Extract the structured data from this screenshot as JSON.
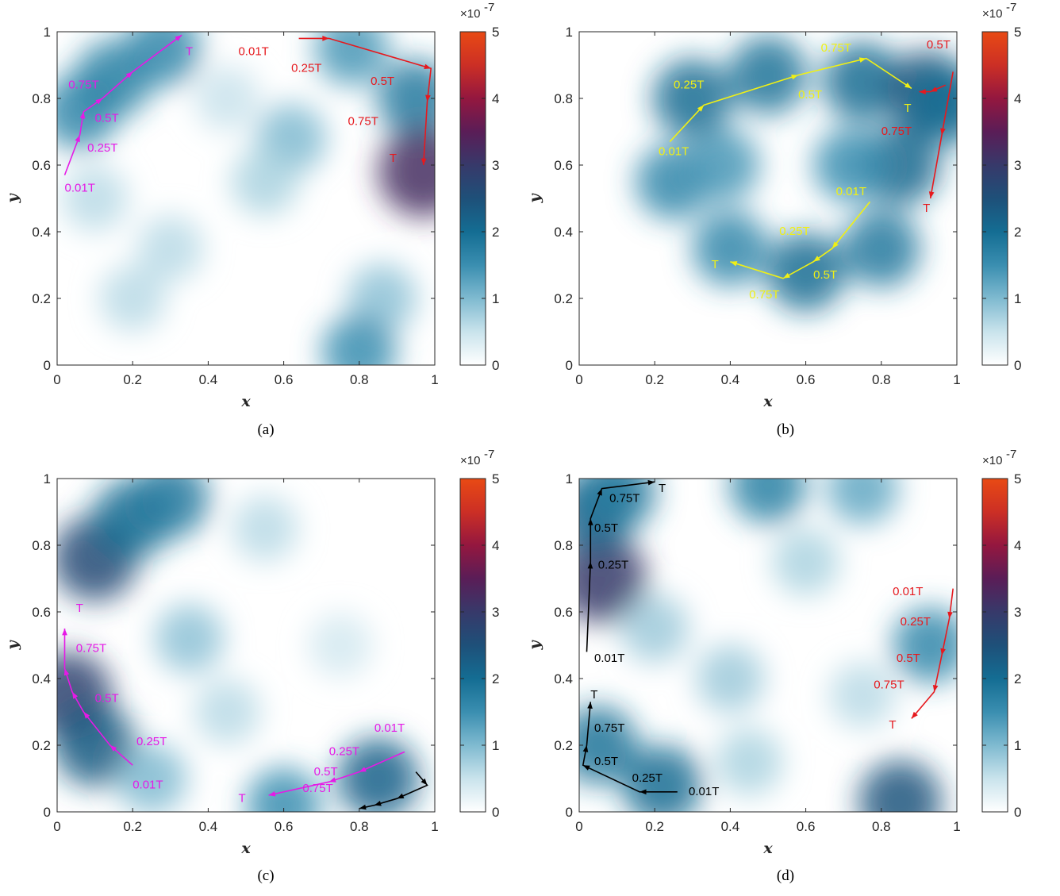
{
  "colormap": [
    "#ffffff",
    "#c9e3ec",
    "#7fbad0",
    "#3a8eb0",
    "#146d93",
    "#1e5079",
    "#37396a",
    "#5a1d57",
    "#94173f",
    "#cc2f25",
    "#e84a14"
  ],
  "chart_data": [
    {
      "type": "heatmap",
      "caption": "(a)",
      "xlabel": "x",
      "ylabel": "y",
      "xlim": [
        0,
        1
      ],
      "ylim": [
        0,
        1
      ],
      "xticks": [
        "0",
        "0.2",
        "0.4",
        "0.6",
        "0.8",
        "1"
      ],
      "yticks": [
        "0",
        "0.2",
        "0.4",
        "0.6",
        "0.8",
        "1"
      ],
      "colorbar": {
        "range": [
          0,
          5
        ],
        "ticks": [
          "0",
          "1",
          "2",
          "3",
          "4",
          "5"
        ],
        "exponent": "×10",
        "exponent_power": "-7"
      },
      "blobs": [
        {
          "x": 0.06,
          "y": 0.76,
          "value": 1.6
        },
        {
          "x": 0.15,
          "y": 0.86,
          "value": 1.7
        },
        {
          "x": 0.28,
          "y": 0.95,
          "value": 1.6
        },
        {
          "x": 0.62,
          "y": 0.68,
          "value": 1.0
        },
        {
          "x": 0.55,
          "y": 0.55,
          "value": 0.7
        },
        {
          "x": 0.78,
          "y": 0.95,
          "value": 1.4
        },
        {
          "x": 0.95,
          "y": 0.8,
          "value": 1.8
        },
        {
          "x": 0.97,
          "y": 0.58,
          "value": 3.2
        },
        {
          "x": 0.86,
          "y": 0.2,
          "value": 0.9
        },
        {
          "x": 0.8,
          "y": 0.04,
          "value": 1.5
        },
        {
          "x": 0.3,
          "y": 0.35,
          "value": 0.6
        },
        {
          "x": 0.2,
          "y": 0.2,
          "value": 0.6
        },
        {
          "x": 0.1,
          "y": 0.5,
          "value": 0.6
        },
        {
          "x": 0.45,
          "y": 0.8,
          "value": 0.5
        }
      ],
      "tracks": [
        {
          "color": "#e619e6",
          "points": [
            [
              0.02,
              0.57
            ],
            [
              0.06,
              0.69
            ],
            [
              0.07,
              0.76
            ],
            [
              0.12,
              0.8
            ],
            [
              0.2,
              0.88
            ],
            [
              0.33,
              0.99
            ]
          ],
          "labels": [
            {
              "text": "0.01T",
              "x": 0.02,
              "y": 0.52
            },
            {
              "text": "0.25T",
              "x": 0.08,
              "y": 0.64
            },
            {
              "text": "0.5T",
              "x": 0.1,
              "y": 0.73
            },
            {
              "text": "0.75T",
              "x": 0.03,
              "y": 0.83
            },
            {
              "text": "T",
              "x": 0.34,
              "y": 0.93
            }
          ]
        },
        {
          "color": "#e6191e",
          "points": [
            [
              0.64,
              0.98
            ],
            [
              0.72,
              0.98
            ],
            [
              0.99,
              0.89
            ],
            [
              0.98,
              0.79
            ],
            [
              0.97,
              0.6
            ]
          ],
          "labels": [
            {
              "text": "0.01T",
              "x": 0.48,
              "y": 0.93
            },
            {
              "text": "0.25T",
              "x": 0.62,
              "y": 0.88
            },
            {
              "text": "0.5T",
              "x": 0.83,
              "y": 0.84
            },
            {
              "text": "0.75T",
              "x": 0.77,
              "y": 0.72
            },
            {
              "text": "T",
              "x": 0.88,
              "y": 0.61
            }
          ]
        }
      ]
    },
    {
      "type": "heatmap",
      "caption": "(b)",
      "xlabel": "x",
      "ylabel": "y",
      "xlim": [
        0,
        1
      ],
      "ylim": [
        0,
        1
      ],
      "xticks": [
        "0",
        "0.2",
        "0.4",
        "0.6",
        "0.8",
        "1"
      ],
      "yticks": [
        "0",
        "0.2",
        "0.4",
        "0.6",
        "0.8",
        "1"
      ],
      "colorbar": {
        "range": [
          0,
          5
        ],
        "ticks": [
          "0",
          "1",
          "2",
          "3",
          "4",
          "5"
        ],
        "exponent": "×10",
        "exponent_power": "-7"
      },
      "blobs": [
        {
          "x": 0.3,
          "y": 0.8,
          "value": 2.0
        },
        {
          "x": 0.5,
          "y": 0.87,
          "value": 1.9
        },
        {
          "x": 0.75,
          "y": 0.85,
          "value": 2.0
        },
        {
          "x": 0.85,
          "y": 0.6,
          "value": 2.1
        },
        {
          "x": 0.8,
          "y": 0.35,
          "value": 1.8
        },
        {
          "x": 0.6,
          "y": 0.28,
          "value": 2.0
        },
        {
          "x": 0.4,
          "y": 0.35,
          "value": 1.6
        },
        {
          "x": 0.25,
          "y": 0.55,
          "value": 1.6
        },
        {
          "x": 0.92,
          "y": 0.82,
          "value": 2.4
        },
        {
          "x": 0.98,
          "y": 0.78,
          "value": 2.0
        },
        {
          "x": 0.72,
          "y": 0.6,
          "value": 1.5
        },
        {
          "x": 0.38,
          "y": 0.6,
          "value": 1.4
        }
      ],
      "tracks": [
        {
          "color": "#f0f014",
          "points": [
            [
              0.24,
              0.67
            ],
            [
              0.33,
              0.78
            ],
            [
              0.58,
              0.87
            ],
            [
              0.76,
              0.92
            ],
            [
              0.88,
              0.83
            ]
          ],
          "labels": [
            {
              "text": "0.01T",
              "x": 0.21,
              "y": 0.63
            },
            {
              "text": "0.25T",
              "x": 0.25,
              "y": 0.83
            },
            {
              "text": "0.5T",
              "x": 0.58,
              "y": 0.8
            },
            {
              "text": "0.75T",
              "x": 0.64,
              "y": 0.94
            },
            {
              "text": "T",
              "x": 0.86,
              "y": 0.76
            }
          ]
        },
        {
          "color": "#f0f014",
          "points": [
            [
              0.77,
              0.49
            ],
            [
              0.67,
              0.35
            ],
            [
              0.62,
              0.31
            ],
            [
              0.54,
              0.26
            ],
            [
              0.4,
              0.31
            ]
          ],
          "labels": [
            {
              "text": "0.01T",
              "x": 0.68,
              "y": 0.51
            },
            {
              "text": "0.25T",
              "x": 0.53,
              "y": 0.39
            },
            {
              "text": "0.5T",
              "x": 0.62,
              "y": 0.26
            },
            {
              "text": "0.75T",
              "x": 0.45,
              "y": 0.2
            },
            {
              "text": "T",
              "x": 0.35,
              "y": 0.29
            }
          ]
        },
        {
          "color": "#e6191e",
          "points": [
            [
              0.97,
              0.84
            ],
            [
              0.93,
              0.82
            ],
            [
              0.9,
              0.82
            ]
          ],
          "labels": [
            {
              "text": "0.5T",
              "x": 0.92,
              "y": 0.95
            },
            {
              "text": "0.75T",
              "x": 0.8,
              "y": 0.69
            },
            {
              "text": "T",
              "x": 0.91,
              "y": 0.46
            }
          ]
        },
        {
          "color": "#e6191e",
          "points": [
            [
              0.99,
              0.88
            ],
            [
              0.96,
              0.69
            ],
            [
              0.93,
              0.5
            ]
          ],
          "labels": []
        }
      ]
    },
    {
      "type": "heatmap",
      "caption": "(c)",
      "xlabel": "x",
      "ylabel": "y",
      "xlim": [
        0,
        1
      ],
      "ylim": [
        0,
        1
      ],
      "xticks": [
        "0",
        "0.2",
        "0.4",
        "0.6",
        "0.8",
        "1"
      ],
      "yticks": [
        "0",
        "0.2",
        "0.4",
        "0.6",
        "0.8",
        "1"
      ],
      "colorbar": {
        "range": [
          0,
          5
        ],
        "ticks": [
          "0",
          "1",
          "2",
          "3",
          "4",
          "5"
        ],
        "exponent": "×10",
        "exponent_power": "-7"
      },
      "blobs": [
        {
          "x": 0.1,
          "y": 0.76,
          "value": 2.6
        },
        {
          "x": 0.2,
          "y": 0.88,
          "value": 2.0
        },
        {
          "x": 0.3,
          "y": 0.94,
          "value": 1.8
        },
        {
          "x": 0.03,
          "y": 0.35,
          "value": 2.8
        },
        {
          "x": 0.1,
          "y": 0.2,
          "value": 2.3
        },
        {
          "x": 0.25,
          "y": 0.1,
          "value": 1.0
        },
        {
          "x": 0.35,
          "y": 0.52,
          "value": 0.9
        },
        {
          "x": 0.6,
          "y": 0.02,
          "value": 1.5
        },
        {
          "x": 0.85,
          "y": 0.1,
          "value": 2.2
        },
        {
          "x": 0.55,
          "y": 0.85,
          "value": 0.6
        },
        {
          "x": 0.75,
          "y": 0.5,
          "value": 0.4
        },
        {
          "x": 0.45,
          "y": 0.3,
          "value": 0.6
        }
      ],
      "tracks": [
        {
          "color": "#e619e6",
          "points": [
            [
              0.2,
              0.14
            ],
            [
              0.14,
              0.2
            ],
            [
              0.07,
              0.3
            ],
            [
              0.04,
              0.36
            ],
            [
              0.02,
              0.43
            ],
            [
              0.02,
              0.55
            ]
          ],
          "labels": [
            {
              "text": "0.01T",
              "x": 0.2,
              "y": 0.07
            },
            {
              "text": "0.25T",
              "x": 0.21,
              "y": 0.2
            },
            {
              "text": "0.5T",
              "x": 0.1,
              "y": 0.33
            },
            {
              "text": "0.75T",
              "x": 0.05,
              "y": 0.48
            },
            {
              "text": "T",
              "x": 0.05,
              "y": 0.6
            }
          ]
        },
        {
          "color": "#e619e6",
          "points": [
            [
              0.92,
              0.18
            ],
            [
              0.8,
              0.12
            ],
            [
              0.72,
              0.09
            ],
            [
              0.56,
              0.05
            ]
          ],
          "labels": [
            {
              "text": "0.01T",
              "x": 0.84,
              "y": 0.24
            },
            {
              "text": "0.25T",
              "x": 0.72,
              "y": 0.17
            },
            {
              "text": "0.5T",
              "x": 0.68,
              "y": 0.11
            },
            {
              "text": "0.75T",
              "x": 0.65,
              "y": 0.06
            },
            {
              "text": "T",
              "x": 0.48,
              "y": 0.03
            }
          ]
        },
        {
          "color": "#000000",
          "points": [
            [
              0.95,
              0.12
            ],
            [
              0.98,
              0.08
            ],
            [
              0.9,
              0.04
            ],
            [
              0.84,
              0.02
            ],
            [
              0.8,
              0.01
            ]
          ],
          "labels": []
        }
      ]
    },
    {
      "type": "heatmap",
      "caption": "(d)",
      "xlabel": "x",
      "ylabel": "y",
      "xlim": [
        0,
        1
      ],
      "ylim": [
        0,
        1
      ],
      "xticks": [
        "0",
        "0.2",
        "0.4",
        "0.6",
        "0.8",
        "1"
      ],
      "yticks": [
        "0",
        "0.2",
        "0.4",
        "0.6",
        "0.8",
        "1"
      ],
      "colorbar": {
        "range": [
          0,
          5
        ],
        "ticks": [
          "0",
          "1",
          "2",
          "3",
          "4",
          "5"
        ],
        "exponent": "×10",
        "exponent_power": "-7"
      },
      "blobs": [
        {
          "x": 0.06,
          "y": 0.7,
          "value": 3.0
        },
        {
          "x": 0.04,
          "y": 0.9,
          "value": 2.2
        },
        {
          "x": 0.1,
          "y": 0.96,
          "value": 1.8
        },
        {
          "x": 0.5,
          "y": 0.98,
          "value": 1.7
        },
        {
          "x": 0.75,
          "y": 0.97,
          "value": 1.2
        },
        {
          "x": 0.05,
          "y": 0.2,
          "value": 1.9
        },
        {
          "x": 0.22,
          "y": 0.08,
          "value": 2.0
        },
        {
          "x": 0.85,
          "y": 0.03,
          "value": 2.4
        },
        {
          "x": 0.93,
          "y": 0.5,
          "value": 1.6
        },
        {
          "x": 0.2,
          "y": 0.55,
          "value": 0.8
        },
        {
          "x": 0.4,
          "y": 0.4,
          "value": 0.8
        },
        {
          "x": 0.6,
          "y": 0.75,
          "value": 0.7
        },
        {
          "x": 0.45,
          "y": 0.15,
          "value": 0.7
        },
        {
          "x": 0.75,
          "y": 0.35,
          "value": 0.6
        }
      ],
      "tracks": [
        {
          "color": "#000000",
          "points": [
            [
              0.02,
              0.48
            ],
            [
              0.03,
              0.75
            ],
            [
              0.03,
              0.88
            ],
            [
              0.06,
              0.97
            ],
            [
              0.2,
              0.99
            ]
          ],
          "labels": [
            {
              "text": "0.01T",
              "x": 0.04,
              "y": 0.45
            },
            {
              "text": "0.25T",
              "x": 0.05,
              "y": 0.73
            },
            {
              "text": "0.5T",
              "x": 0.04,
              "y": 0.84
            },
            {
              "text": "0.75T",
              "x": 0.08,
              "y": 0.93
            },
            {
              "text": "T",
              "x": 0.21,
              "y": 0.96
            }
          ]
        },
        {
          "color": "#000000",
          "points": [
            [
              0.26,
              0.06
            ],
            [
              0.16,
              0.06
            ],
            [
              0.01,
              0.14
            ],
            [
              0.02,
              0.2
            ],
            [
              0.03,
              0.33
            ]
          ],
          "labels": [
            {
              "text": "0.01T",
              "x": 0.29,
              "y": 0.05
            },
            {
              "text": "0.25T",
              "x": 0.14,
              "y": 0.09
            },
            {
              "text": "0.5T",
              "x": 0.04,
              "y": 0.14
            },
            {
              "text": "0.75T",
              "x": 0.04,
              "y": 0.24
            },
            {
              "text": "T",
              "x": 0.03,
              "y": 0.34
            }
          ]
        },
        {
          "color": "#e6191e",
          "points": [
            [
              0.99,
              0.67
            ],
            [
              0.98,
              0.58
            ],
            [
              0.96,
              0.47
            ],
            [
              0.94,
              0.36
            ],
            [
              0.88,
              0.28
            ]
          ],
          "labels": [
            {
              "text": "0.01T",
              "x": 0.83,
              "y": 0.65
            },
            {
              "text": "0.25T",
              "x": 0.85,
              "y": 0.56
            },
            {
              "text": "0.5T",
              "x": 0.84,
              "y": 0.45
            },
            {
              "text": "0.75T",
              "x": 0.78,
              "y": 0.37
            },
            {
              "text": "T",
              "x": 0.82,
              "y": 0.25
            }
          ]
        }
      ]
    }
  ]
}
